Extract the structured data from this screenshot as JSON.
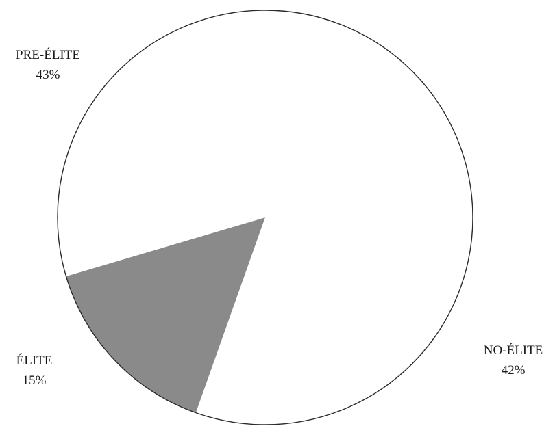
{
  "chart_data": {
    "type": "pie",
    "slices": [
      {
        "label": "PRE-ÉLITE",
        "value": 43,
        "value_label": "43%",
        "color": "#ffffff"
      },
      {
        "label": "ÉLITE",
        "value": 15,
        "value_label": "15%",
        "color": "#8a8a8a"
      },
      {
        "label": "NO-ÉLITE",
        "value": 42,
        "value_label": "42%",
        "color": "#ffffff"
      }
    ],
    "title": "",
    "legend": "none"
  }
}
